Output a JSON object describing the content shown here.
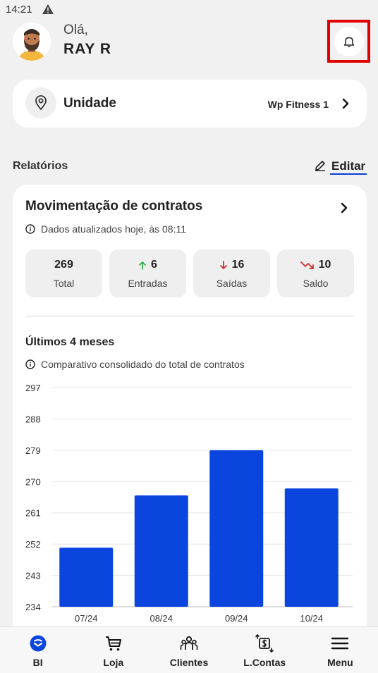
{
  "status": {
    "time": "14:21",
    "warning_icon": "warning-icon"
  },
  "header": {
    "greeting": "Olá,",
    "user_name": "RAY R",
    "bell_icon": "bell-icon"
  },
  "unit": {
    "label": "Unidade",
    "value": "Wp Fitness 1"
  },
  "reports": {
    "title": "Relatórios",
    "edit_label": "Editar"
  },
  "contracts": {
    "title": "Movimentação de contratos",
    "updated_text": "Dados atualizados hoje, às 08:11",
    "stats": [
      {
        "value": "269",
        "label": "Total",
        "icon": "",
        "color": ""
      },
      {
        "value": "6",
        "label": "Entradas",
        "icon": "arrow-up-icon",
        "color": "#2cae4e"
      },
      {
        "value": "16",
        "label": "Saídas",
        "icon": "arrow-down-icon",
        "color": "#d42a2a"
      },
      {
        "value": "10",
        "label": "Saldo",
        "icon": "trend-down-icon",
        "color": "#d42a2a"
      }
    ],
    "months_title": "Últimos 4 meses",
    "months_info": "Comparativo consolidado do total de contratos"
  },
  "chart_data": {
    "type": "bar",
    "categories": [
      "07/24",
      "08/24",
      "09/24",
      "10/24"
    ],
    "values": [
      251,
      266,
      279,
      268
    ],
    "ylim": [
      234,
      297
    ],
    "yticks": [
      297,
      288,
      279,
      270,
      261,
      252,
      243,
      234
    ],
    "bar_color": "#0a45de",
    "grid": true
  },
  "nav": [
    {
      "label": "BI",
      "icon": "bi-icon",
      "active": true
    },
    {
      "label": "Loja",
      "icon": "cart-icon"
    },
    {
      "label": "Clientes",
      "icon": "clients-icon"
    },
    {
      "label": "L.Contas",
      "icon": "accounts-icon"
    },
    {
      "label": "Menu",
      "icon": "menu-icon"
    }
  ]
}
